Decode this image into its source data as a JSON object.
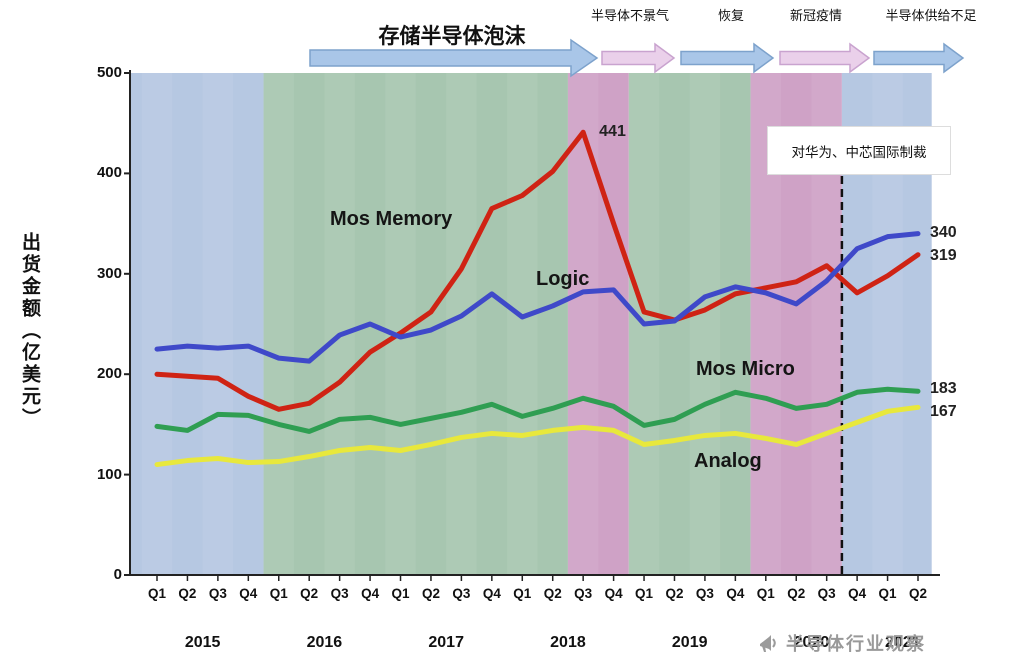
{
  "chart_data": {
    "type": "line",
    "title": "",
    "xlabel": "",
    "ylabel": "出货金额（亿美元）",
    "ylim": [
      0,
      500
    ],
    "yticks": [
      0,
      100,
      200,
      300,
      400,
      500
    ],
    "grid": false,
    "legend_position": "inline-labels",
    "quarters": [
      "Q1",
      "Q2",
      "Q3",
      "Q4",
      "Q1",
      "Q2",
      "Q3",
      "Q4",
      "Q1",
      "Q2",
      "Q3",
      "Q4",
      "Q1",
      "Q2",
      "Q3",
      "Q4",
      "Q1",
      "Q2",
      "Q3",
      "Q4",
      "Q1",
      "Q2",
      "Q3",
      "Q4",
      "Q1",
      "Q2"
    ],
    "year_groups": [
      {
        "label": "2015",
        "start": 0,
        "end": 3
      },
      {
        "label": "2016",
        "start": 4,
        "end": 7
      },
      {
        "label": "2017",
        "start": 8,
        "end": 11
      },
      {
        "label": "2018",
        "start": 12,
        "end": 15
      },
      {
        "label": "2019",
        "start": 16,
        "end": 19
      },
      {
        "label": "2020",
        "start": 20,
        "end": 23
      },
      {
        "label": "2021",
        "start": 24,
        "end": 25
      }
    ],
    "series": [
      {
        "name": "Mos Memory",
        "color": "#cf2314",
        "values": [
          200,
          198,
          196,
          178,
          165,
          171,
          192,
          222,
          241,
          262,
          305,
          365,
          378,
          402,
          441,
          350,
          262,
          254,
          264,
          280,
          286,
          292,
          308,
          281,
          298,
          319
        ]
      },
      {
        "name": "Logic",
        "color": "#3f49c9",
        "values": [
          225,
          228,
          226,
          228,
          216,
          213,
          239,
          250,
          237,
          244,
          258,
          280,
          257,
          268,
          282,
          284,
          250,
          253,
          277,
          287,
          281,
          270,
          293,
          325,
          337,
          340
        ]
      },
      {
        "name": "Mos Micro",
        "color": "#2f9e52",
        "values": [
          148,
          144,
          160,
          159,
          150,
          143,
          155,
          157,
          150,
          156,
          162,
          170,
          158,
          166,
          176,
          168,
          149,
          155,
          170,
          182,
          176,
          166,
          170,
          182,
          185,
          183
        ]
      },
      {
        "name": "Analog",
        "color": "#e8e83c",
        "values": [
          110,
          114,
          116,
          112,
          113,
          118,
          124,
          127,
          124,
          130,
          137,
          141,
          139,
          144,
          147,
          144,
          130,
          134,
          139,
          141,
          136,
          130,
          141,
          152,
          163,
          167
        ]
      }
    ],
    "point_labels": {
      "peak_memory": "441",
      "logic_latest": "340",
      "memory_latest": "319",
      "micro_latest": "183",
      "analog_latest": "167"
    },
    "bands": [
      {
        "from": -0.89,
        "to": 3.5,
        "color": "#b6c8e2"
      },
      {
        "from": 3.5,
        "to": 13.5,
        "color": "#a7c6b0"
      },
      {
        "from": 13.5,
        "to": 15.5,
        "color": "#cfa2c6"
      },
      {
        "from": 15.5,
        "to": 19.5,
        "color": "#a7c6b0"
      },
      {
        "from": 19.5,
        "to": 22.5,
        "color": "#cfa2c6"
      },
      {
        "from": 22.5,
        "to": 25.45,
        "color": "#b6c8e2"
      }
    ],
    "dashed_line_index": 22.5
  },
  "annotations": {
    "memory_bubble": "存储半导体泡沫",
    "downturn": "半导体不景气",
    "recovery": "恢复",
    "covid": "新冠疫情",
    "supply_shortage": "半导体供给不足",
    "sanctions": "对华为、中芯国际制裁"
  },
  "watermark": {
    "text": "半导体行业观察"
  }
}
